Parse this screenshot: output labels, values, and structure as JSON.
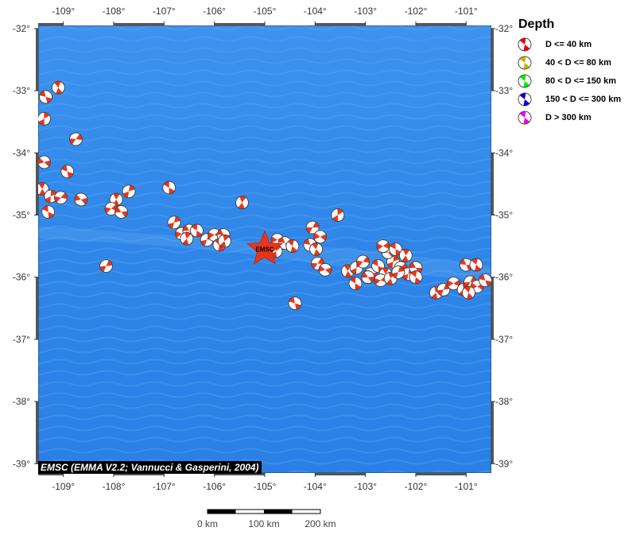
{
  "map": {
    "lon_range": [
      -109.5,
      -100.5
    ],
    "lat_range": [
      -39.15,
      -31.95
    ],
    "lon_ticks": [
      -109,
      -108,
      -107,
      -106,
      -105,
      -104,
      -103,
      -102,
      -101
    ],
    "lat_ticks": [
      -32,
      -33,
      -34,
      -35,
      -36,
      -37,
      -38,
      -39
    ],
    "lon_labels": [
      "-109°",
      "-108°",
      "-107°",
      "-106°",
      "-105°",
      "-104°",
      "-103°",
      "-102°",
      "-101°"
    ],
    "lat_labels": [
      "-32°",
      "-33°",
      "-34°",
      "-35°",
      "-36°",
      "-37°",
      "-38°",
      "-39°"
    ],
    "ocean_color": "#2f86e8",
    "frame_dark": "#555555",
    "frame_light": "#ffffff"
  },
  "epicenter": {
    "label": "EMSC",
    "lon": -105.0,
    "lat": -35.55,
    "color": "#e8351a"
  },
  "events": [
    {
      "lon": -109.35,
      "lat": -33.1
    },
    {
      "lon": -109.1,
      "lat": -32.95
    },
    {
      "lon": -109.38,
      "lat": -33.45
    },
    {
      "lon": -108.75,
      "lat": -33.78
    },
    {
      "lon": -109.38,
      "lat": -34.15
    },
    {
      "lon": -108.92,
      "lat": -34.3
    },
    {
      "lon": -109.42,
      "lat": -34.58
    },
    {
      "lon": -109.25,
      "lat": -34.7
    },
    {
      "lon": -109.05,
      "lat": -34.72
    },
    {
      "lon": -108.65,
      "lat": -34.75
    },
    {
      "lon": -109.3,
      "lat": -34.95
    },
    {
      "lon": -107.95,
      "lat": -34.75
    },
    {
      "lon": -107.7,
      "lat": -34.62
    },
    {
      "lon": -108.05,
      "lat": -34.9
    },
    {
      "lon": -107.85,
      "lat": -34.95
    },
    {
      "lon": -106.9,
      "lat": -34.56
    },
    {
      "lon": -105.45,
      "lat": -34.8
    },
    {
      "lon": -106.8,
      "lat": -35.12
    },
    {
      "lon": -106.65,
      "lat": -35.3
    },
    {
      "lon": -106.5,
      "lat": -35.25
    },
    {
      "lon": -106.35,
      "lat": -35.25
    },
    {
      "lon": -106.55,
      "lat": -35.38
    },
    {
      "lon": -106.15,
      "lat": -35.4
    },
    {
      "lon": -106.0,
      "lat": -35.32
    },
    {
      "lon": -105.82,
      "lat": -35.32
    },
    {
      "lon": -105.9,
      "lat": -35.48
    },
    {
      "lon": -105.8,
      "lat": -35.42
    },
    {
      "lon": -108.15,
      "lat": -35.82
    },
    {
      "lon": -104.75,
      "lat": -35.4
    },
    {
      "lon": -104.6,
      "lat": -35.45
    },
    {
      "lon": -104.45,
      "lat": -35.5
    },
    {
      "lon": -104.78,
      "lat": -35.58
    },
    {
      "lon": -104.05,
      "lat": -35.2
    },
    {
      "lon": -103.9,
      "lat": -35.35
    },
    {
      "lon": -104.1,
      "lat": -35.48
    },
    {
      "lon": -103.98,
      "lat": -35.55
    },
    {
      "lon": -103.55,
      "lat": -35.0
    },
    {
      "lon": -103.95,
      "lat": -35.78
    },
    {
      "lon": -103.8,
      "lat": -35.88
    },
    {
      "lon": -104.4,
      "lat": -36.42
    },
    {
      "lon": -103.35,
      "lat": -35.9
    },
    {
      "lon": -103.18,
      "lat": -35.85
    },
    {
      "lon": -103.05,
      "lat": -35.75
    },
    {
      "lon": -102.9,
      "lat": -35.95
    },
    {
      "lon": -102.75,
      "lat": -35.82
    },
    {
      "lon": -102.6,
      "lat": -35.95
    },
    {
      "lon": -102.45,
      "lat": -35.75
    },
    {
      "lon": -102.3,
      "lat": -35.85
    },
    {
      "lon": -102.55,
      "lat": -35.6
    },
    {
      "lon": -102.4,
      "lat": -35.55
    },
    {
      "lon": -102.2,
      "lat": -35.65
    },
    {
      "lon": -102.15,
      "lat": -35.95
    },
    {
      "lon": -102.7,
      "lat": -36.05
    },
    {
      "lon": -102.95,
      "lat": -36.0
    },
    {
      "lon": -103.2,
      "lat": -36.1
    },
    {
      "lon": -102.5,
      "lat": -36.02
    },
    {
      "lon": -102.35,
      "lat": -35.92
    },
    {
      "lon": -102.65,
      "lat": -35.5
    },
    {
      "lon": -102.0,
      "lat": -35.85
    },
    {
      "lon": -102.0,
      "lat": -36.0
    },
    {
      "lon": -101.6,
      "lat": -36.25
    },
    {
      "lon": -101.45,
      "lat": -36.2
    },
    {
      "lon": -101.25,
      "lat": -36.1
    },
    {
      "lon": -101.0,
      "lat": -35.8
    },
    {
      "lon": -100.8,
      "lat": -35.8
    },
    {
      "lon": -101.05,
      "lat": -36.2
    },
    {
      "lon": -100.92,
      "lat": -36.08
    },
    {
      "lon": -100.78,
      "lat": -36.15
    },
    {
      "lon": -100.62,
      "lat": -36.05
    },
    {
      "lon": -100.95,
      "lat": -36.25
    }
  ],
  "legend": {
    "title": "Depth",
    "items": [
      {
        "label": "D <= 40 km",
        "color": "#f00000"
      },
      {
        "label": "40 < D <= 80 km",
        "color": "#c8b400"
      },
      {
        "label": "80 < D <= 150 km",
        "color": "#00ee00"
      },
      {
        "label": "150 < D <= 300 km",
        "color": "#0000cc"
      },
      {
        "label": "D > 300 km",
        "color": "#ee00ee"
      }
    ]
  },
  "event_color": "#e8351a",
  "credit": "EMSC (EMMA V2.2; Vannucci & Gasperini, 2004)",
  "scalebar": {
    "labels": [
      "0 km",
      "100 km",
      "200 km"
    ]
  }
}
